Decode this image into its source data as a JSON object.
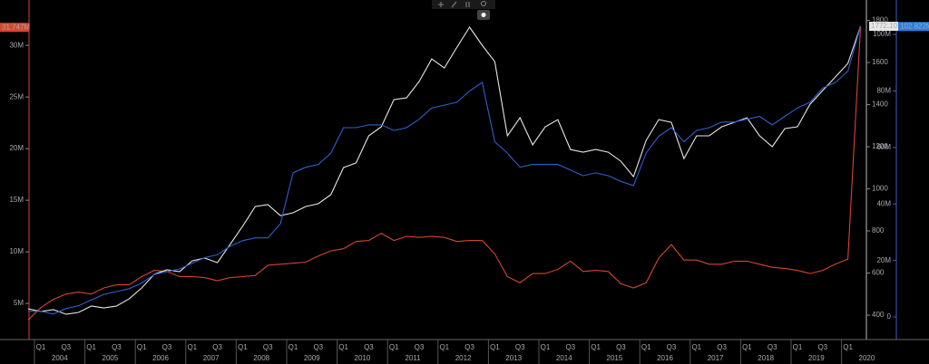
{
  "chart_data": {
    "type": "line",
    "categories": [
      null,
      "Q1",
      null,
      "Q3",
      null,
      "Q1",
      null,
      "Q3",
      null,
      "Q1",
      null,
      "Q3",
      null,
      "Q1",
      null,
      "Q3",
      null,
      "Q1",
      null,
      "Q3",
      null,
      "Q1",
      null,
      "Q3",
      null,
      "Q1",
      null,
      "Q3",
      null,
      "Q1",
      null,
      "Q3",
      null,
      "Q1",
      null,
      "Q3",
      null,
      "Q1",
      null,
      "Q3",
      null,
      "Q1",
      null,
      "Q3",
      null,
      "Q1",
      null,
      "Q3",
      null,
      "Q1",
      null,
      "Q3",
      null,
      "Q1",
      null,
      "Q3",
      null,
      "Q1",
      null,
      "Q3",
      null,
      "Q1",
      null,
      "Q3",
      null,
      "Q1",
      null
    ],
    "years": [
      "2004",
      "2005",
      "2006",
      "2007",
      "2008",
      "2009",
      "2010",
      "2011",
      "2012",
      "2013",
      "2014",
      "2015",
      "2016",
      "2017",
      "2018",
      "2019",
      "2020"
    ],
    "ylim": [
      1.5,
      34.4
    ],
    "yticks": [
      {
        "value": 5,
        "label": "5M"
      },
      {
        "value": 10,
        "label": "10M"
      },
      {
        "value": 15,
        "label": "15M"
      },
      {
        "value": 20,
        "label": "20M"
      },
      {
        "value": 25,
        "label": "25M"
      },
      {
        "value": 30,
        "label": "30M"
      }
    ],
    "y2lim": [
      284,
      1897
    ],
    "y2ticks": [
      400,
      600,
      800,
      1000,
      1200,
      1400,
      1600,
      1800
    ],
    "y3lim": [
      -8,
      112.2
    ],
    "y3ticks": [
      0,
      {
        "value": 20,
        "label": "20M"
      },
      {
        "value": 40,
        "label": "40M"
      },
      {
        "value": 60,
        "label": "60M"
      },
      {
        "value": 80,
        "label": "80M"
      },
      {
        "value": 100,
        "label": "100M"
      }
    ],
    "series": [
      {
        "color": "#d8442f",
        "axis": "y",
        "last_label": "31.747M",
        "values": [
          3.4,
          4.6,
          5.4,
          5.9,
          6.1,
          5.9,
          6.5,
          6.8,
          6.8,
          7.6,
          8.2,
          8.1,
          7.6,
          7.6,
          7.5,
          7.2,
          7.5,
          7.6,
          7.7,
          8.7,
          8.8,
          8.9,
          9.0,
          9.6,
          10.1,
          10.3,
          11.0,
          11.1,
          11.8,
          11.1,
          11.5,
          11.4,
          11.5,
          11.4,
          11.0,
          11.1,
          11.1,
          9.8,
          7.6,
          7.0,
          7.9,
          7.9,
          8.3,
          9.1,
          8.1,
          8.2,
          8.1,
          6.9,
          6.5,
          7.0,
          9.4,
          10.7,
          9.2,
          9.2,
          8.8,
          8.8,
          9.1,
          9.1,
          8.8,
          8.5,
          8.4,
          8.2,
          7.9,
          8.2,
          8.8,
          9.3,
          31.747
        ]
      },
      {
        "color": "#e6e6e6",
        "axis": "y2",
        "last_label": "1772.10",
        "values": [
          430,
          417,
          426,
          404,
          413,
          443,
          434,
          443,
          477,
          529,
          594,
          615,
          606,
          658,
          671,
          649,
          735,
          822,
          916,
          925,
          873,
          886,
          916,
          929,
          972,
          1101,
          1123,
          1252,
          1295,
          1424,
          1432,
          1510,
          1617,
          1574,
          1673,
          1768,
          1682,
          1604,
          1252,
          1338,
          1209,
          1295,
          1329,
          1187,
          1174,
          1187,
          1174,
          1131,
          1058,
          1230,
          1329,
          1316,
          1144,
          1252,
          1252,
          1295,
          1316,
          1338,
          1252,
          1200,
          1286,
          1295,
          1402,
          1467,
          1531,
          1596,
          1772.1
        ]
      },
      {
        "color": "#2f5fd0",
        "axis": "y3",
        "last_label": "102.822M",
        "values": [
          2,
          2,
          1,
          3,
          4,
          6,
          8,
          9,
          10,
          12,
          15,
          16,
          17,
          19,
          21,
          22,
          25,
          27,
          28,
          28,
          33,
          51,
          53,
          54,
          58,
          67,
          67,
          68,
          68,
          66,
          67,
          70,
          74,
          75,
          76,
          80,
          83,
          62,
          58,
          53,
          54,
          54,
          54,
          52,
          50,
          51,
          50,
          48,
          46.5,
          58,
          64,
          67,
          62,
          66,
          67,
          69,
          69,
          70,
          71,
          68,
          71,
          74,
          76,
          81,
          83,
          87,
          102.822
        ]
      }
    ]
  }
}
